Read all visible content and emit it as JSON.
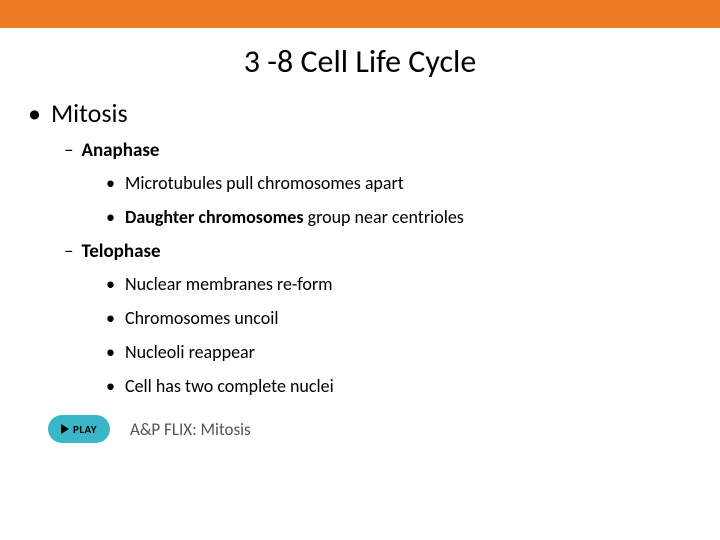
{
  "colors": {
    "top_bar": "#ee7c24",
    "background": "#ffffff",
    "text": "#000000",
    "play_button_bg": "#3ab6c8",
    "play_label_color": "#555555"
  },
  "typography": {
    "title_fontsize": 32,
    "l1_fontsize": 26,
    "l2_fontsize": 19,
    "l3_fontsize": 18,
    "play_label_fontsize": 17,
    "font_family": "Calibri"
  },
  "title": "3 -8 Cell Life Cycle",
  "l1_item": "Mitosis",
  "sections": [
    {
      "heading": "Anaphase",
      "items": [
        {
          "text": "Microtubules pull chromosomes apart",
          "bold_lead": null
        },
        {
          "text": " group near centrioles",
          "bold_lead": "Daughter chromosomes"
        }
      ]
    },
    {
      "heading": "Telophase",
      "items": [
        {
          "text": "Nuclear membranes re-form",
          "bold_lead": null
        },
        {
          "text": "Chromosomes uncoil",
          "bold_lead": null
        },
        {
          "text": "Nucleoli reappear",
          "bold_lead": null
        },
        {
          "text": "Cell has two complete nuclei",
          "bold_lead": null
        }
      ]
    }
  ],
  "play": {
    "button_text": "PLAY",
    "label": "A&P FLIX: Mitosis"
  }
}
